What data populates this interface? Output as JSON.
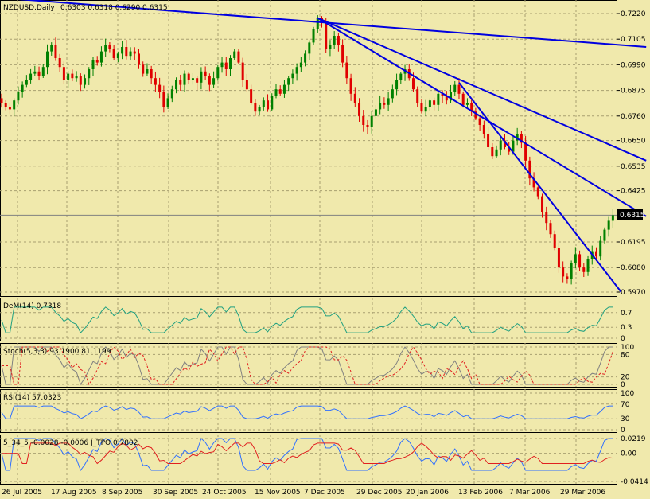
{
  "chart_data": {
    "type": "candlestick",
    "symbol_label": "NZDUSD,Daily",
    "ohlc_label": "0.6303 0.6318 0.6290 0.6315",
    "current_price": "0.6315",
    "y_ticks": [
      "0.7220",
      "0.7105",
      "0.6990",
      "0.6875",
      "0.6760",
      "0.6650",
      "0.6535",
      "0.6425",
      "0.6195",
      "0.6080",
      "0.5970"
    ],
    "ylim": [
      0.597,
      0.727
    ],
    "x_labels": [
      "26 Jul 2005",
      "17 Aug 2005",
      "8 Sep 2005",
      "30 Sep 2005",
      "24 Oct 2005",
      "15 Nov 2005",
      "7 Dec 2005",
      "29 Dec 2005",
      "20 Jan 2006",
      "13 Feb 2006",
      "7 Mar 2006",
      "29 Mar 2006"
    ],
    "closes": [
      0.682,
      0.68,
      0.679,
      0.683,
      0.687,
      0.69,
      0.692,
      0.695,
      0.696,
      0.694,
      0.698,
      0.705,
      0.708,
      0.702,
      0.698,
      0.692,
      0.695,
      0.693,
      0.694,
      0.69,
      0.693,
      0.697,
      0.701,
      0.7,
      0.705,
      0.708,
      0.706,
      0.702,
      0.704,
      0.707,
      0.703,
      0.705,
      0.704,
      0.699,
      0.695,
      0.697,
      0.693,
      0.69,
      0.687,
      0.68,
      0.684,
      0.688,
      0.692,
      0.69,
      0.695,
      0.692,
      0.693,
      0.691,
      0.696,
      0.694,
      0.69,
      0.693,
      0.698,
      0.7,
      0.697,
      0.702,
      0.705,
      0.7,
      0.692,
      0.688,
      0.682,
      0.678,
      0.68,
      0.683,
      0.679,
      0.685,
      0.688,
      0.686,
      0.69,
      0.693,
      0.695,
      0.698,
      0.7,
      0.704,
      0.709,
      0.715,
      0.72,
      0.718,
      0.706,
      0.708,
      0.712,
      0.708,
      0.7,
      0.693,
      0.686,
      0.682,
      0.676,
      0.672,
      0.671,
      0.676,
      0.679,
      0.682,
      0.681,
      0.684,
      0.688,
      0.692,
      0.695,
      0.697,
      0.693,
      0.688,
      0.682,
      0.678,
      0.68,
      0.683,
      0.681,
      0.686,
      0.685,
      0.683,
      0.687,
      0.69,
      0.686,
      0.681,
      0.682,
      0.678,
      0.675,
      0.672,
      0.668,
      0.662,
      0.658,
      0.661,
      0.665,
      0.662,
      0.66,
      0.665,
      0.668,
      0.664,
      0.656,
      0.648,
      0.644,
      0.64,
      0.633,
      0.628,
      0.623,
      0.617,
      0.608,
      0.604,
      0.603,
      0.61,
      0.614,
      0.608,
      0.606,
      0.612,
      0.615,
      0.613,
      0.62,
      0.625,
      0.629,
      0.6315
    ],
    "trendlines": [
      {
        "from": [
          0,
          0.729
        ],
        "to": [
          155,
          0.707
        ]
      },
      {
        "from": [
          76,
          0.72
        ],
        "to": [
          155,
          0.656
        ]
      },
      {
        "from": [
          76,
          0.72
        ],
        "to": [
          155,
          0.631
        ]
      },
      {
        "from": [
          110,
          0.691
        ],
        "to": [
          149,
          0.597
        ]
      }
    ],
    "indicators": [
      {
        "name": "DeM(14)",
        "label": "DeM(14) 0.7318",
        "ticks": [
          "0.7",
          "0.3",
          "0"
        ],
        "ylim": [
          0,
          1
        ]
      },
      {
        "name": "Stoch(5,3,3)",
        "label": "Stoch(5,3,3) 93.1900 81.1199",
        "ticks": [
          "100",
          "80",
          "20",
          "0"
        ],
        "ylim": [
          0,
          100
        ]
      },
      {
        "name": "RSI(14)",
        "label": "RSI(14) 57.0323",
        "ticks": [
          "100",
          "70",
          "30",
          "0"
        ],
        "ylim": [
          0,
          100
        ]
      },
      {
        "name": "5_34_5",
        "label": "5_34_5 -0.0028 -0.0006 J_TPO 0.7802",
        "ticks": [
          "0.0219",
          "0.00",
          "-0.0414"
        ],
        "ylim": [
          -0.0414,
          0.0219
        ]
      }
    ]
  },
  "colors": {
    "background": "#F0E9AC",
    "grid": "#A8A070",
    "bull": "#008000",
    "bear": "#E00000",
    "trendline": "#0000E0",
    "indicator_teal": "#20A080",
    "indicator_blue": "#3070FF",
    "indicator_red": "#E02020"
  }
}
